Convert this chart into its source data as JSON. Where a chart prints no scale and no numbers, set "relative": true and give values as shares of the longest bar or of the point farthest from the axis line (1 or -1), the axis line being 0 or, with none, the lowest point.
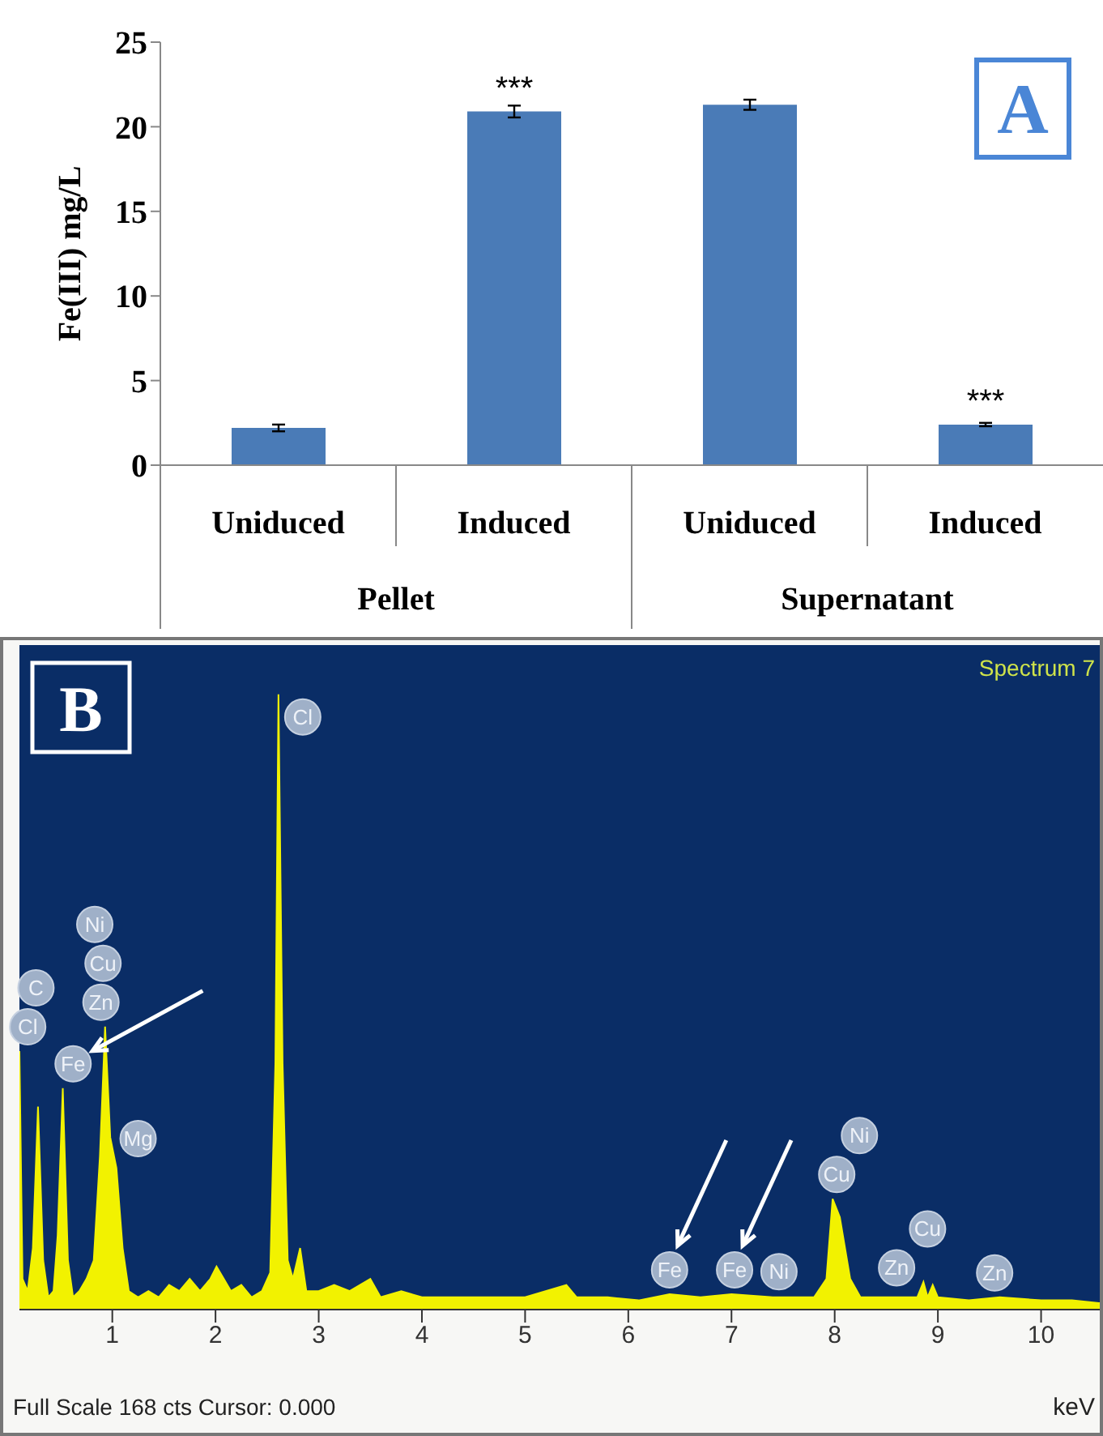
{
  "chart_data": [
    {
      "type": "bar",
      "categories": [
        "Uniduced",
        "Induced",
        "Uniduced",
        "Induced"
      ],
      "values": [
        2.2,
        20.9,
        21.3,
        2.4
      ],
      "errors": [
        0.2,
        0.35,
        0.3,
        0.1
      ],
      "value_labels": [
        null,
        "***",
        null,
        "***"
      ],
      "color": "#4a7bb7",
      "ylabel": "Fe(III) mg/L",
      "ylim": [
        0,
        25
      ],
      "yticks": [
        0,
        5,
        10,
        15,
        20,
        25
      ],
      "annotations": [
        "A",
        "Pellet",
        "Supernatant"
      ]
    },
    {
      "type": "area",
      "relative": true,
      "color": "#f2f200",
      "xlabel": "keV",
      "xlim": [
        0.1,
        10.6
      ],
      "xticks": [
        1,
        2,
        3,
        4,
        5,
        6,
        7,
        8,
        9,
        10
      ],
      "x": [
        0.1,
        0.13,
        0.18,
        0.23,
        0.28,
        0.33,
        0.38,
        0.43,
        0.47,
        0.52,
        0.57,
        0.62,
        0.68,
        0.75,
        0.82,
        0.88,
        0.93,
        0.98,
        1.04,
        1.1,
        1.16,
        1.25,
        1.35,
        1.45,
        1.55,
        1.65,
        1.75,
        1.85,
        1.95,
        2.01,
        2.08,
        2.15,
        2.25,
        2.35,
        2.45,
        2.53,
        2.58,
        2.61,
        2.65,
        2.7,
        2.75,
        2.82,
        2.88,
        3.0,
        3.15,
        3.3,
        3.5,
        3.6,
        3.8,
        4.0,
        4.3,
        4.6,
        5.0,
        5.4,
        5.5,
        5.8,
        6.1,
        6.4,
        6.7,
        7.0,
        7.4,
        7.8,
        7.92,
        7.98,
        8.05,
        8.15,
        8.25,
        8.6,
        8.8,
        8.86,
        8.9,
        8.95,
        9.0,
        9.3,
        9.6,
        10.0,
        10.3,
        10.6
      ],
      "values": [
        0.42,
        0.05,
        0.03,
        0.1,
        0.33,
        0.08,
        0.02,
        0.03,
        0.12,
        0.36,
        0.08,
        0.02,
        0.03,
        0.05,
        0.08,
        0.25,
        0.46,
        0.28,
        0.23,
        0.1,
        0.03,
        0.02,
        0.03,
        0.02,
        0.04,
        0.03,
        0.05,
        0.03,
        0.05,
        0.07,
        0.05,
        0.03,
        0.04,
        0.02,
        0.03,
        0.06,
        0.4,
        1.0,
        0.4,
        0.08,
        0.05,
        0.1,
        0.03,
        0.03,
        0.04,
        0.03,
        0.05,
        0.02,
        0.03,
        0.02,
        0.02,
        0.02,
        0.02,
        0.04,
        0.02,
        0.02,
        0.015,
        0.025,
        0.02,
        0.025,
        0.02,
        0.02,
        0.05,
        0.18,
        0.15,
        0.05,
        0.02,
        0.02,
        0.02,
        0.045,
        0.02,
        0.04,
        0.02,
        0.015,
        0.02,
        0.015,
        0.015,
        0.01
      ],
      "annotations": [
        "B",
        "Spectrum 7",
        "Full Scale 168 cts Cursor: 0.000",
        {
          "text": "Cl",
          "x": 0.18
        },
        {
          "text": "C",
          "x": 0.26
        },
        {
          "text": "Zn",
          "x": 0.89
        },
        {
          "text": "Cu",
          "x": 0.91
        },
        {
          "text": "Fe",
          "x": 0.62
        },
        {
          "text": "Ni",
          "x": 0.83
        },
        {
          "text": "Mg",
          "x": 1.25
        },
        {
          "text": "Cl",
          "x": 2.61
        },
        {
          "text": "Fe",
          "x": 6.4
        },
        {
          "text": "Fe",
          "x": 7.03
        },
        {
          "text": "Ni",
          "x": 7.46
        },
        {
          "text": "Cu",
          "x": 8.02
        },
        {
          "text": "Ni",
          "x": 8.24
        },
        {
          "text": "Zn",
          "x": 8.6
        },
        {
          "text": "Cu",
          "x": 8.9
        },
        {
          "text": "Zn",
          "x": 9.55
        }
      ]
    }
  ]
}
